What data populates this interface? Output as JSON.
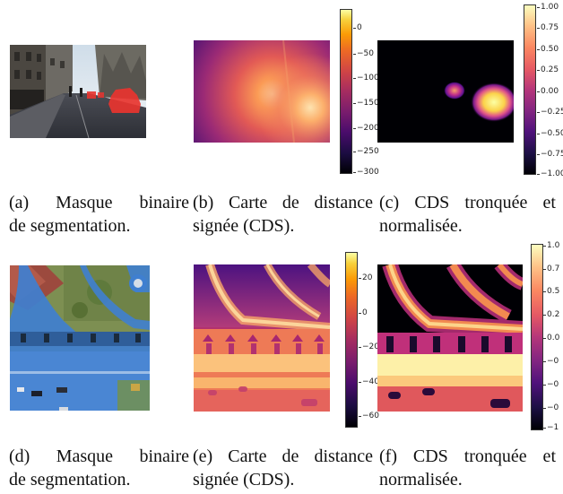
{
  "rows": [
    {
      "captions": [
        {
          "line1": "(a) Masque binaire",
          "line2": "de segmentation."
        },
        {
          "line1": "(b) Carte de distance",
          "line2": "signée (CDS)."
        },
        {
          "line1": "(c) CDS tronquée et",
          "line2": "normalisée."
        }
      ],
      "colorbar_b_ticks": [
        "0",
        "−50",
        "−100",
        "−150",
        "−200",
        "−250",
        "−300"
      ],
      "colorbar_c_ticks": [
        "1.00",
        "0.75",
        "0.50",
        "0.25",
        "0.00",
        "−0.25",
        "−0.50",
        "−0.75",
        "−1.00"
      ]
    },
    {
      "captions": [
        {
          "line1": "(d) Masque binaire",
          "line2": "de segmentation."
        },
        {
          "line1": "(e) Carte de distance",
          "line2": "signée (CDS)."
        },
        {
          "line1": "(f) CDS tronquée et",
          "line2": "normalisée."
        }
      ],
      "colorbar_e_ticks": [
        "20",
        "0",
        "−20",
        "−40",
        "−60"
      ],
      "colorbar_f_ticks": [
        "1.0",
        "0.7",
        "0.5",
        "0.2",
        "0.0",
        "−0",
        "−0",
        "−0",
        "−1"
      ]
    }
  ],
  "colors": {
    "mask_overlay": "#e8342f",
    "aerial_mask": "#3f7fd0",
    "inferno_low": "#000004",
    "inferno_high": "#fcffa4"
  }
}
